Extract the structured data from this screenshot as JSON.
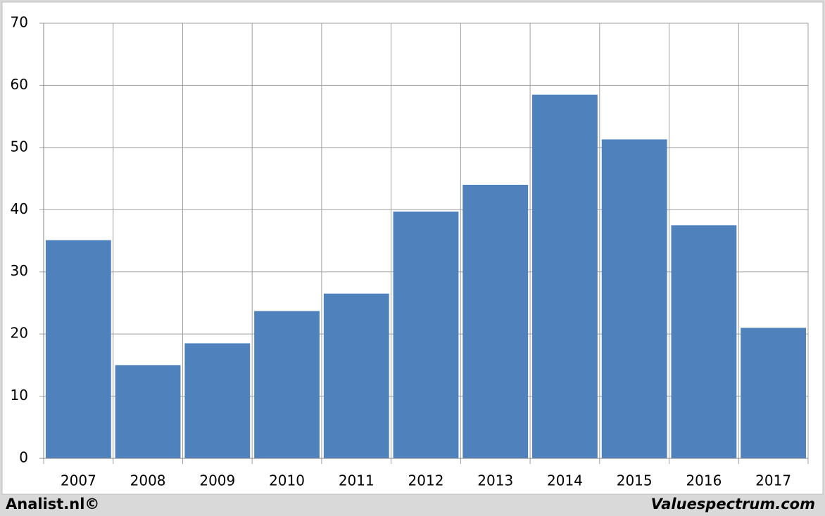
{
  "chart_data": {
    "type": "bar",
    "categories": [
      "2007",
      "2008",
      "2009",
      "2010",
      "2011",
      "2012",
      "2013",
      "2014",
      "2015",
      "2016",
      "2017"
    ],
    "values": [
      35.1,
      15,
      18.5,
      23.7,
      26.5,
      39.7,
      44.0,
      58.5,
      51.3,
      37.5,
      21.0
    ],
    "color": "#4f81bd",
    "ylim": [
      0,
      70
    ],
    "yticks": [
      0,
      10,
      20,
      30,
      40,
      50,
      60,
      70
    ],
    "grid": true,
    "footer_left": "Analist.nl©",
    "footer_right": "Valuespectrum.com"
  }
}
